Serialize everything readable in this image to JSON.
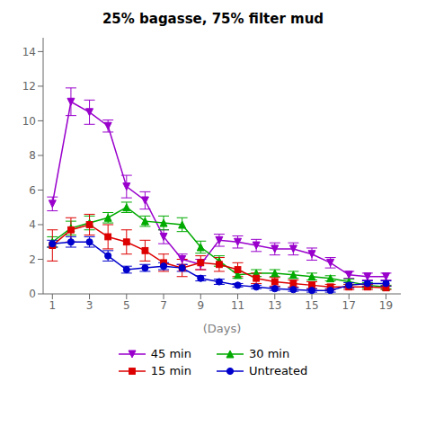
{
  "chart_data": {
    "type": "line",
    "title": "25% bagasse, 75% filter mud",
    "xlabel": "(Days)",
    "x": [
      1,
      2,
      3,
      4,
      5,
      6,
      7,
      8,
      9,
      10,
      11,
      12,
      13,
      14,
      15,
      16,
      17,
      18,
      19
    ],
    "series": [
      {
        "name": "45 min",
        "color": "#9900CC",
        "marker": "triangle-down",
        "values": [
          5.2,
          11.1,
          10.5,
          9.7,
          6.2,
          5.4,
          3.3,
          2.0,
          1.7,
          3.1,
          3.0,
          2.8,
          2.6,
          2.6,
          2.3,
          1.8,
          1.1,
          1.0,
          1.0
        ],
        "yerr": [
          0.4,
          0.8,
          0.7,
          0.35,
          0.65,
          0.5,
          0.4,
          0.3,
          0.3,
          0.35,
          0.35,
          0.35,
          0.35,
          0.35,
          0.35,
          0.3,
          0.2,
          0.2,
          0.2
        ]
      },
      {
        "name": "30 min",
        "color": "#00AA00",
        "marker": "triangle-up",
        "values": [
          3.0,
          3.8,
          4.1,
          4.4,
          5.0,
          4.2,
          4.1,
          4.0,
          2.7,
          1.9,
          1.1,
          1.2,
          1.2,
          1.1,
          1.0,
          0.9,
          0.7,
          0.5,
          0.4
        ],
        "yerr": [
          0.3,
          0.4,
          0.4,
          0.3,
          0.3,
          0.3,
          0.4,
          0.4,
          0.35,
          0.3,
          0.2,
          0.2,
          0.2,
          0.2,
          0.2,
          0.15,
          0.15,
          0.15,
          0.1
        ]
      },
      {
        "name": "15 min",
        "color": "#DD0000",
        "marker": "square",
        "values": [
          2.8,
          3.7,
          4.0,
          3.3,
          3.0,
          2.5,
          1.8,
          1.5,
          1.8,
          1.7,
          1.4,
          0.9,
          0.7,
          0.6,
          0.5,
          0.4,
          0.4,
          0.4,
          0.35
        ],
        "yerr": [
          0.9,
          0.7,
          0.6,
          0.7,
          0.7,
          0.6,
          0.5,
          0.5,
          0.4,
          0.4,
          0.4,
          0.3,
          0.25,
          0.2,
          0.2,
          0.15,
          0.15,
          0.15,
          0.1
        ]
      },
      {
        "name": "Untreated",
        "color": "#0000CC",
        "marker": "circle",
        "values": [
          2.9,
          3.0,
          3.0,
          2.2,
          1.4,
          1.5,
          1.6,
          1.5,
          0.9,
          0.7,
          0.5,
          0.4,
          0.3,
          0.25,
          0.2,
          0.2,
          0.5,
          0.6,
          0.6
        ],
        "yerr": [
          0.2,
          0.3,
          0.3,
          0.3,
          0.2,
          0.2,
          0.2,
          0.2,
          0.15,
          0.15,
          0.1,
          0.1,
          0.1,
          0.1,
          0.1,
          0.1,
          0.15,
          0.15,
          0.15
        ]
      }
    ],
    "xlim": [
      0.5,
      19.8
    ],
    "ylim": [
      0,
      14.8
    ],
    "xticks": [
      1,
      3,
      5,
      7,
      9,
      11,
      13,
      15,
      17,
      19
    ],
    "yticks": [
      0,
      2,
      4,
      6,
      8,
      10,
      12,
      14
    ],
    "grid": false,
    "legend": "bottom"
  }
}
